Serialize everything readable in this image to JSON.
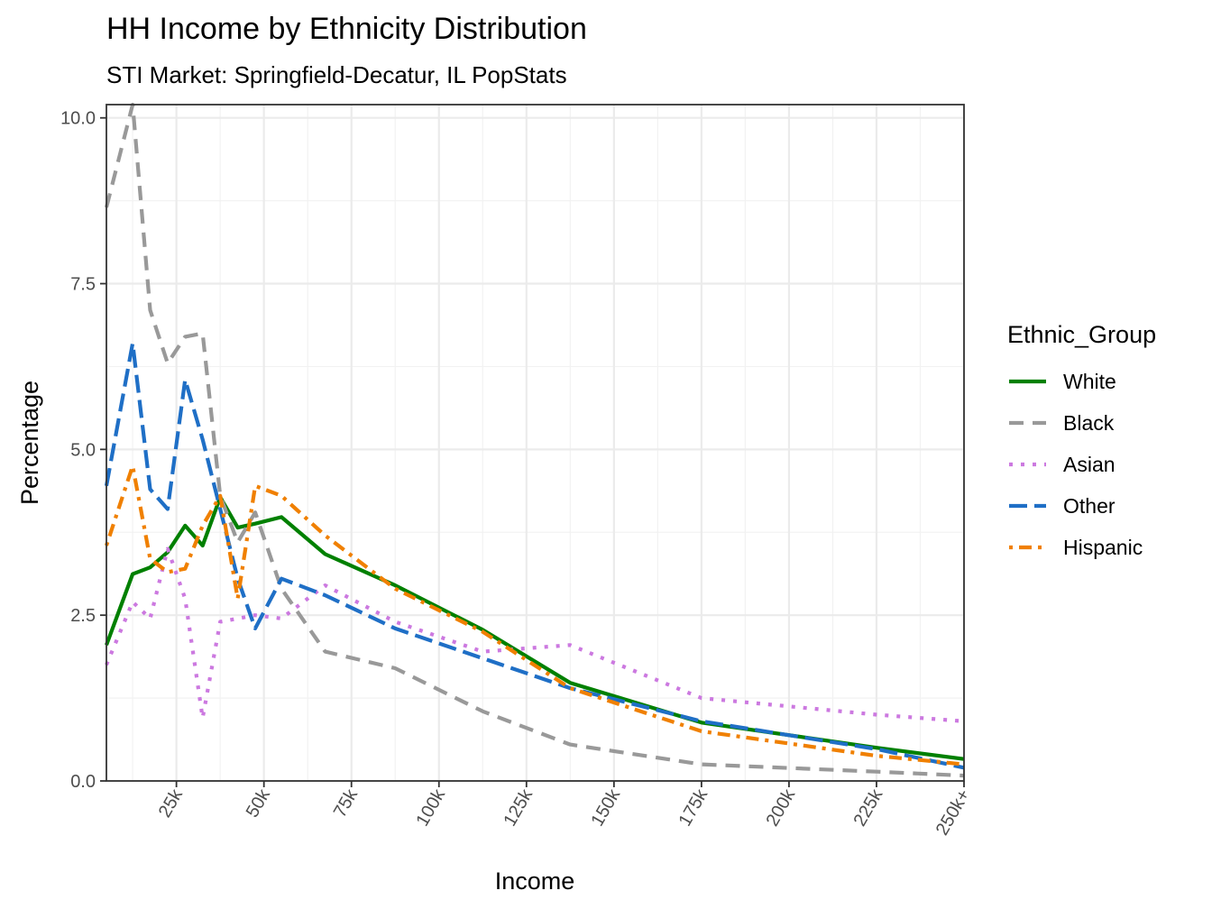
{
  "chart_data": {
    "type": "line",
    "title": "HH Income by Ethnicity Distribution",
    "subtitle": "STI Market: Springfield-Decatur, IL PopStats",
    "xlabel": "Income",
    "ylabel": "Percentage",
    "xlim": [
      5,
      250
    ],
    "ylim": [
      0,
      10.2
    ],
    "x_ticks": [
      25,
      50,
      75,
      100,
      125,
      150,
      175,
      200,
      225,
      250
    ],
    "x_tick_labels": [
      "25k",
      "50k",
      "75k",
      "100k",
      "125k",
      "150k",
      "175k",
      "200k",
      "225k",
      "250k+"
    ],
    "y_ticks": [
      0,
      2.5,
      5,
      7.5,
      10
    ],
    "y_tick_labels": [
      "0.0",
      "2.5",
      "5.0",
      "7.5",
      "10.0"
    ],
    "grid": true,
    "legend": {
      "title": "Ethnic_Group",
      "position": "right"
    },
    "x": [
      5,
      12.5,
      17.5,
      22.5,
      27.5,
      32.5,
      37.5,
      42.5,
      47.5,
      55,
      67.5,
      87.5,
      112.5,
      137.5,
      175,
      225,
      250
    ],
    "series": [
      {
        "name": "White",
        "color": "#008000",
        "dash": "solid",
        "values": [
          2.05,
          3.12,
          3.22,
          3.45,
          3.85,
          3.55,
          4.28,
          3.82,
          3.88,
          3.98,
          3.42,
          2.95,
          2.28,
          1.48,
          0.88,
          0.5,
          0.33
        ]
      },
      {
        "name": "Black",
        "color": "#999999",
        "dash": "dashed",
        "values": [
          8.65,
          10.2,
          7.1,
          6.3,
          6.7,
          6.75,
          4.3,
          3.6,
          4.05,
          2.9,
          1.95,
          1.7,
          1.05,
          0.55,
          0.25,
          0.14,
          0.08
        ]
      },
      {
        "name": "Asian",
        "color": "#cc79e0",
        "dash": "dotted",
        "values": [
          1.75,
          2.7,
          2.45,
          3.5,
          2.75,
          0.95,
          2.4,
          2.45,
          2.5,
          2.45,
          2.95,
          2.4,
          1.95,
          2.05,
          1.25,
          1.0,
          0.9
        ]
      },
      {
        "name": "Other",
        "color": "#1f6fc6",
        "dash": "longdash",
        "values": [
          4.45,
          6.6,
          4.4,
          4.1,
          6.05,
          5.15,
          4.1,
          3.05,
          2.3,
          3.05,
          2.8,
          2.3,
          1.85,
          1.4,
          0.9,
          0.48,
          0.2
        ]
      },
      {
        "name": "Hispanic",
        "color": "#f08000",
        "dash": "dotdash",
        "values": [
          3.55,
          4.75,
          3.35,
          3.15,
          3.2,
          3.85,
          4.3,
          2.75,
          4.45,
          4.3,
          3.7,
          2.9,
          2.25,
          1.4,
          0.75,
          0.38,
          0.25
        ]
      }
    ]
  }
}
